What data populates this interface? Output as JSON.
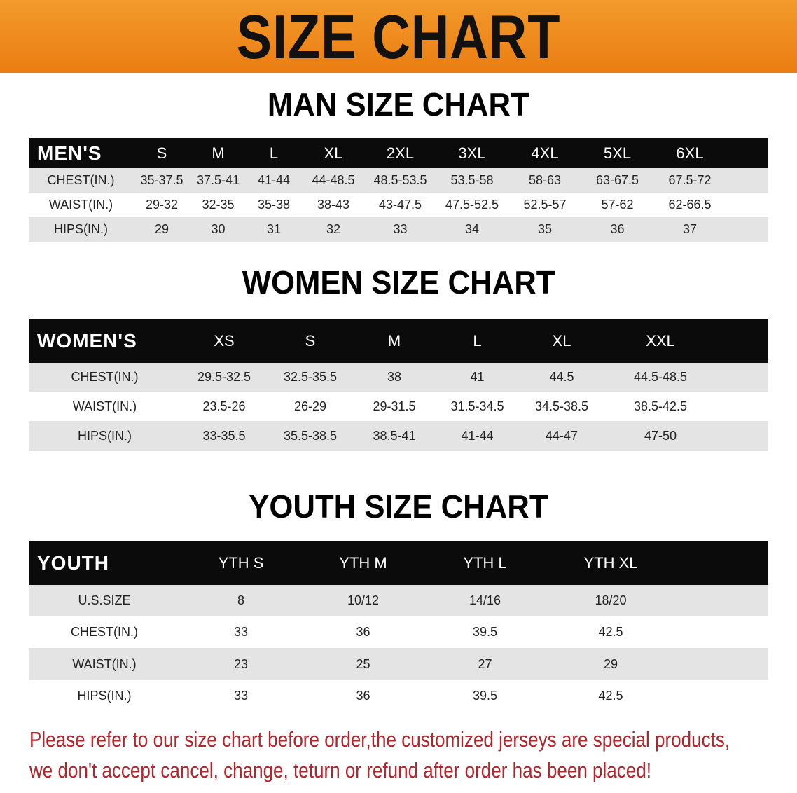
{
  "banner": "SIZE CHART",
  "colors": {
    "banner": "#ee8a1e",
    "header_row": "#0b0b0b",
    "stripe": "#e4e4e4",
    "note": "#b3242b"
  },
  "men": {
    "title": "MAN SIZE CHART",
    "header": [
      "MEN'S",
      "S",
      "M",
      "L",
      "XL",
      "2XL",
      "3XL",
      "4XL",
      "5XL",
      "6XL"
    ],
    "rows": [
      [
        "CHEST(IN.)",
        "35-37.5",
        "37.5-41",
        "41-44",
        "44-48.5",
        "48.5-53.5",
        "53.5-58",
        "58-63",
        "63-67.5",
        "67.5-72"
      ],
      [
        "WAIST(IN.)",
        "29-32",
        "32-35",
        "35-38",
        "38-43",
        "43-47.5",
        "47.5-52.5",
        "52.5-57",
        "57-62",
        "62-66.5"
      ],
      [
        "HIPS(IN.)",
        "29",
        "30",
        "31",
        "32",
        "33",
        "34",
        "35",
        "36",
        "37"
      ]
    ]
  },
  "women": {
    "title": "WOMEN SIZE CHART",
    "header": [
      "WOMEN'S",
      "XS",
      "S",
      "M",
      "L",
      "XL",
      "XXL"
    ],
    "rows": [
      [
        "CHEST(IN.)",
        "29.5-32.5",
        "32.5-35.5",
        "38",
        "41",
        "44.5",
        "44.5-48.5"
      ],
      [
        "WAIST(IN.)",
        "23.5-26",
        "26-29",
        "29-31.5",
        "31.5-34.5",
        "34.5-38.5",
        "38.5-42.5"
      ],
      [
        "HIPS(IN.)",
        "33-35.5",
        "35.5-38.5",
        "38.5-41",
        "41-44",
        "44-47",
        "47-50"
      ]
    ]
  },
  "youth": {
    "title": "YOUTH SIZE CHART",
    "header": [
      "YOUTH",
      "YTH S",
      "YTH M",
      "YTH L",
      "YTH XL"
    ],
    "rows": [
      [
        "U.S.SIZE",
        "8",
        "10/12",
        "14/16",
        "18/20"
      ],
      [
        "CHEST(IN.)",
        "33",
        "36",
        "39.5",
        "42.5"
      ],
      [
        "WAIST(IN.)",
        "23",
        "25",
        "27",
        "29"
      ],
      [
        "HIPS(IN.)",
        "33",
        "36",
        "39.5",
        "42.5"
      ]
    ]
  },
  "note": {
    "line1": "Please refer to our size chart before order,the customized jerseys are special products,",
    "line2": "we don't accept cancel, change, teturn or refund after order has been placed!"
  }
}
